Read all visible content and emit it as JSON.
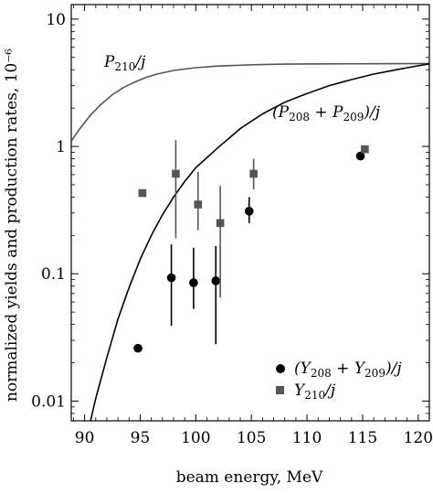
{
  "chart_data": {
    "type": "scatter",
    "xlabel": "beam energy, MeV",
    "ylabel": "normalized yields and production rates, 10⁻⁶",
    "xlim": [
      88.8,
      121
    ],
    "ylim": [
      0.007,
      13
    ],
    "y_scale": "log",
    "x_ticks": [
      90,
      95,
      100,
      105,
      110,
      115,
      120
    ],
    "y_ticks": [
      0.01,
      0.1,
      1,
      10
    ],
    "y_tick_labels": [
      "0.01",
      "0.1",
      "1",
      "10"
    ],
    "grid": false,
    "legend_position": "bottom-right",
    "colors": {
      "black": "#000000",
      "gray": "#555555"
    },
    "series": [
      {
        "name": "(Y208 + Y209)/j",
        "marker": "circle",
        "color": "#000000",
        "points": [
          {
            "x": 94.8,
            "y": 0.026
          },
          {
            "x": 97.8,
            "y": 0.093,
            "err_lo": 0.039,
            "err_hi": 0.17
          },
          {
            "x": 99.8,
            "y": 0.085,
            "err_lo": 0.053,
            "err_hi": 0.16
          },
          {
            "x": 101.8,
            "y": 0.088,
            "err_lo": 0.028,
            "err_hi": 0.165
          },
          {
            "x": 104.8,
            "y": 0.31,
            "err_lo": 0.25,
            "err_hi": 0.4
          },
          {
            "x": 114.8,
            "y": 0.84
          }
        ]
      },
      {
        "name": "Y210/j",
        "marker": "square",
        "color": "#555555",
        "points": [
          {
            "x": 95.2,
            "y": 0.43
          },
          {
            "x": 98.2,
            "y": 0.61,
            "err_lo": 0.19,
            "err_hi": 1.12
          },
          {
            "x": 100.2,
            "y": 0.35,
            "err_lo": 0.22,
            "err_hi": 0.63
          },
          {
            "x": 102.2,
            "y": 0.25,
            "err_lo": 0.065,
            "err_hi": 0.49
          },
          {
            "x": 105.2,
            "y": 0.61,
            "err_lo": 0.46,
            "err_hi": 0.8
          },
          {
            "x": 115.2,
            "y": 0.95
          }
        ]
      }
    ],
    "curves": [
      {
        "name": "P210/j",
        "color": "#555555",
        "points": [
          [
            88.8,
            1.1
          ],
          [
            89.5,
            1.35
          ],
          [
            90.5,
            1.75
          ],
          [
            91.5,
            2.15
          ],
          [
            92.5,
            2.55
          ],
          [
            93.5,
            2.9
          ],
          [
            94.5,
            3.2
          ],
          [
            95.5,
            3.48
          ],
          [
            96.5,
            3.7
          ],
          [
            98,
            3.95
          ],
          [
            100,
            4.15
          ],
          [
            102,
            4.28
          ],
          [
            105,
            4.38
          ],
          [
            108,
            4.43
          ],
          [
            112,
            4.45
          ],
          [
            116,
            4.46
          ],
          [
            121,
            4.48
          ]
        ]
      },
      {
        "name": "(P208 + P209)/j",
        "color": "#000000",
        "points": [
          [
            90.5,
            0.0068
          ],
          [
            91,
            0.0105
          ],
          [
            92,
            0.022
          ],
          [
            93,
            0.044
          ],
          [
            94,
            0.078
          ],
          [
            95,
            0.13
          ],
          [
            96,
            0.2
          ],
          [
            97,
            0.29
          ],
          [
            98,
            0.4
          ],
          [
            99,
            0.53
          ],
          [
            100,
            0.68
          ],
          [
            102,
            0.98
          ],
          [
            104,
            1.38
          ],
          [
            106,
            1.8
          ],
          [
            108,
            2.22
          ],
          [
            110,
            2.6
          ],
          [
            112,
            3.0
          ],
          [
            114,
            3.35
          ],
          [
            116,
            3.7
          ],
          [
            118,
            4.0
          ],
          [
            120,
            4.3
          ],
          [
            121,
            4.45
          ]
        ]
      }
    ]
  },
  "labels": {
    "curve_p210_sym": "P",
    "curve_p210_sub": "210",
    "curve_p210_tail": "/j",
    "curve_p208_open": "(P",
    "curve_p208_sub1": "208",
    "curve_p208_mid": " + P",
    "curve_p208_sub2": "209",
    "curve_p208_tail": ")/j",
    "legend_circle_open": "(Y",
    "legend_circle_sub1": "208",
    "legend_circle_mid": " + Y",
    "legend_circle_sub2": "209",
    "legend_circle_tail": ")/j",
    "legend_square_sym": "Y",
    "legend_square_sub": "210",
    "legend_square_tail": "/j"
  }
}
